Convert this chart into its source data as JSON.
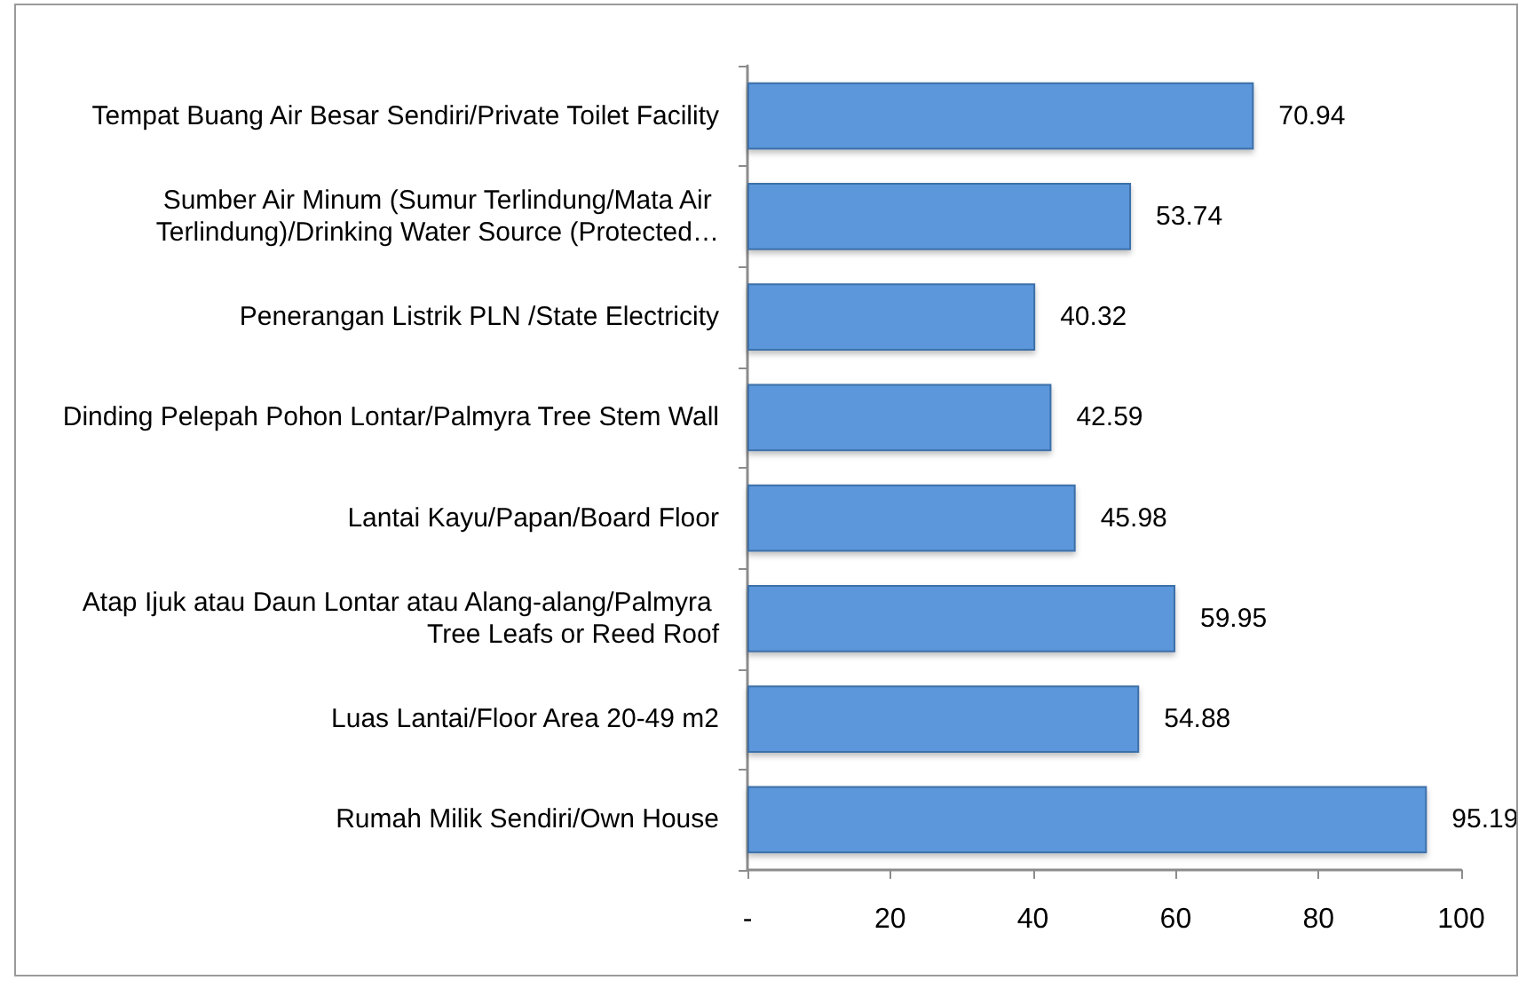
{
  "chart_data": {
    "type": "bar",
    "orientation": "horizontal",
    "categories": [
      "Tempat Buang Air Besar Sendiri/Private Toilet Facility",
      "Sumber Air Minum (Sumur Terlindung/Mata Air Terlindung)/Drinking Water Source (Protected…",
      "Penerangan Listrik PLN /State Electricity",
      "Dinding Pelepah Pohon Lontar/Palmyra Tree Stem Wall",
      "Lantai Kayu/Papan/Board Floor",
      "Atap Ijuk atau Daun Lontar atau Alang-alang/Palmyra Tree Leafs or Reed Roof",
      "Luas Lantai/Floor Area 20-49 m2",
      "Rumah Milik Sendiri/Own House"
    ],
    "values": [
      70.94,
      53.74,
      40.32,
      42.59,
      45.98,
      59.95,
      54.88,
      95.19
    ],
    "color": "#5b97db",
    "xlim": [
      0,
      100
    ],
    "xticks": [
      {
        "value": 0,
        "label": "-"
      },
      20,
      40,
      60,
      80,
      100
    ],
    "data_labels": true
  }
}
